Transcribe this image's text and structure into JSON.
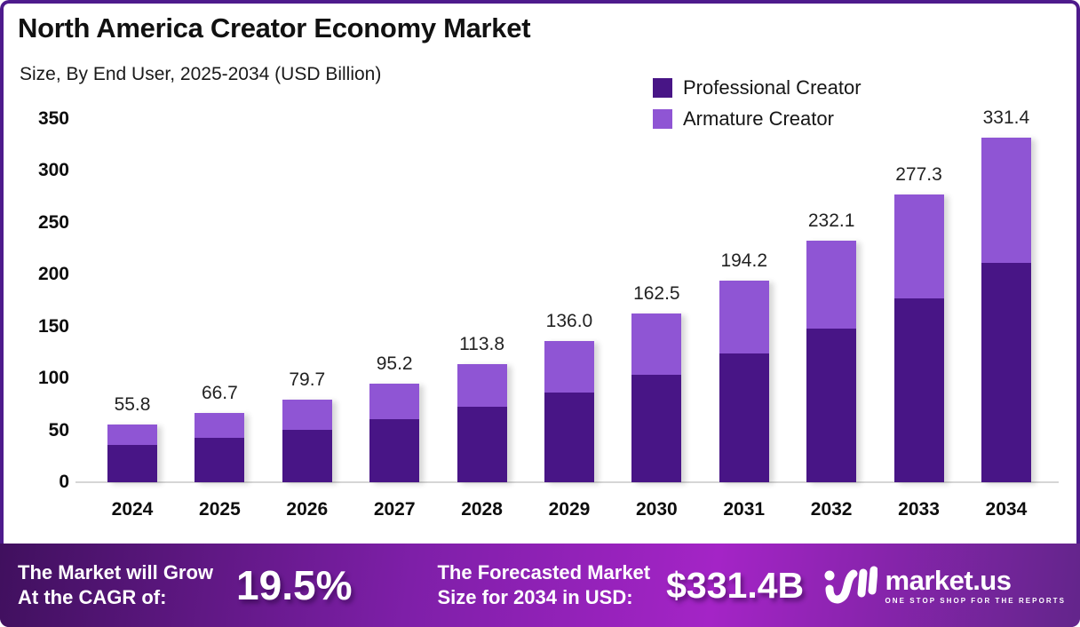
{
  "header": {
    "title": "North America Creator Economy Market",
    "subtitle": "Size, By End User, 2025-2034 (USD Billion)"
  },
  "colors": {
    "frame_border": "#4e1b8c",
    "professional": "#481586",
    "amateur": "#8f55d4",
    "axis_line": "#d6d6d6",
    "banner_gradient_left": "#40105e",
    "banner_gradient_mid1": "#7e1fa8",
    "banner_gradient_mid2": "#a424c6",
    "banner_gradient_right": "#63258b"
  },
  "chart_data": {
    "type": "bar",
    "stacked": true,
    "title": "North America Creator Economy Market Size, By End User, 2025-2034 (USD Billion)",
    "categories": [
      "2024",
      "2025",
      "2026",
      "2027",
      "2028",
      "2029",
      "2030",
      "2031",
      "2032",
      "2033",
      "2034"
    ],
    "series": [
      {
        "name": "Professional Creator",
        "color": "#481586",
        "values": [
          35.5,
          42.5,
          50.8,
          60.6,
          72.5,
          86.6,
          103.5,
          123.7,
          147.8,
          176.6,
          211.1
        ]
      },
      {
        "name": "Armature Creator",
        "color": "#8f55d4",
        "values": [
          20.3,
          24.2,
          28.9,
          34.6,
          41.3,
          49.4,
          59.0,
          70.5,
          84.3,
          100.7,
          120.3
        ]
      }
    ],
    "totals": [
      55.8,
      66.7,
      79.7,
      95.2,
      113.8,
      136.0,
      162.5,
      194.2,
      232.1,
      277.3,
      331.4
    ],
    "total_labels": [
      "55.8",
      "66.7",
      "79.7",
      "95.2",
      "113.8",
      "136.0",
      "162.5",
      "194.2",
      "232.1",
      "277.3",
      "331.4"
    ],
    "xlabel": "",
    "ylabel": "",
    "ylim": [
      0,
      350
    ],
    "yticks": [
      0,
      50,
      100,
      150,
      200,
      250,
      300,
      350
    ],
    "grid": false,
    "legend_position": "top-right"
  },
  "banner": {
    "cagr_label_line1": "The Market will Grow",
    "cagr_label_line2": "At the CAGR of:",
    "cagr_value": "19.5%",
    "forecast_label_line1": "The Forecasted Market",
    "forecast_label_line2": "Size for 2034 in USD:",
    "forecast_value": "$331.4B",
    "logo_text": "market.us",
    "logo_tagline": "ONE STOP SHOP FOR THE REPORTS"
  }
}
